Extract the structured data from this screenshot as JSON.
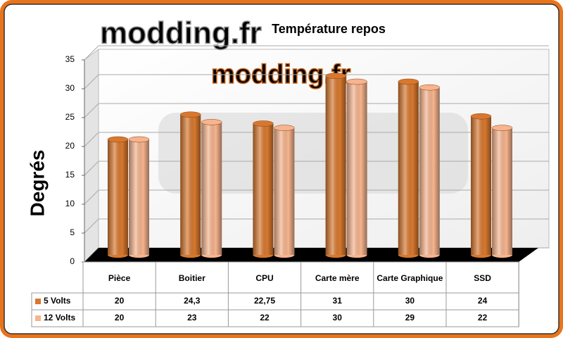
{
  "watermark": "modding.fr",
  "chart_data": {
    "type": "bar",
    "title": "Température repos",
    "y_label": "Degrés",
    "categories": [
      "Pièce",
      "Boitier",
      "CPU",
      "Carte mère",
      "Carte Graphique",
      "SSD"
    ],
    "series": [
      {
        "name": "5 Volts",
        "color": "#d8782e",
        "values": [
          20,
          24.3,
          22.75,
          31,
          30,
          24
        ],
        "value_labels": [
          "20",
          "24,3",
          "22,75",
          "31",
          "30",
          "24"
        ]
      },
      {
        "name": "12 Volts",
        "color": "#f7b48e",
        "values": [
          20,
          23,
          22,
          30,
          29,
          22
        ],
        "value_labels": [
          "20",
          "23",
          "22",
          "30",
          "29",
          "22"
        ]
      }
    ],
    "ylim": [
      0,
      35
    ],
    "yticks": [
      0,
      5,
      10,
      15,
      20,
      25,
      30,
      35
    ],
    "grid": true
  }
}
